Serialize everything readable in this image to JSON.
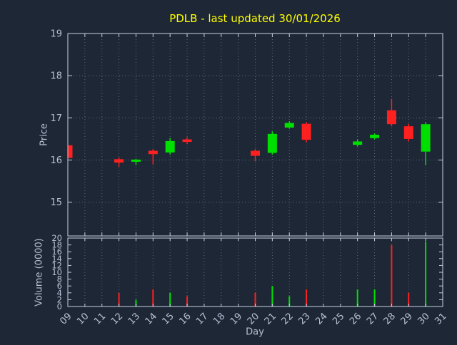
{
  "colors": {
    "background": "#1d2736",
    "up": "#00e000",
    "down": "#ff2020",
    "grid": "#5a6a80",
    "border": "#c6d0e2",
    "axis_text": "#b6c2d4",
    "title": "#ffff00"
  },
  "chart_data": {
    "type": "candlestick",
    "title": "PDLB - last updated 30/01/2026",
    "xlabel": "Day",
    "ylabel": "Price",
    "y2label": "Volume (0000)",
    "x_min": 9,
    "x_max": 31,
    "price_min": 14.2,
    "price_max": 19,
    "volume_min": 0,
    "volume_max": 20,
    "price_ticks": [
      15,
      16,
      17,
      18,
      19
    ],
    "volume_ticks": [
      0,
      2,
      4,
      6,
      8,
      10,
      12,
      14,
      16,
      18,
      20
    ],
    "day_labels": [
      "09",
      "10",
      "11",
      "12",
      "13",
      "14",
      "15",
      "16",
      "17",
      "18",
      "19",
      "20",
      "21",
      "22",
      "23",
      "24",
      "25",
      "26",
      "27",
      "28",
      "29",
      "30",
      "31"
    ],
    "grid": true,
    "legend": "none",
    "candles": [
      {
        "day": 9,
        "open": 16.35,
        "high": 16.35,
        "low": 16.05,
        "close": 16.05,
        "volume": 0
      },
      {
        "day": 12,
        "open": 16.02,
        "high": 16.06,
        "low": 15.84,
        "close": 15.94,
        "volume": 4
      },
      {
        "day": 13,
        "open": 15.96,
        "high": 16.03,
        "low": 15.89,
        "close": 16.01,
        "volume": 2
      },
      {
        "day": 14,
        "open": 16.22,
        "high": 16.26,
        "low": 15.9,
        "close": 16.14,
        "volume": 5
      },
      {
        "day": 15,
        "open": 16.18,
        "high": 16.52,
        "low": 16.13,
        "close": 16.45,
        "volume": 4
      },
      {
        "day": 16,
        "open": 16.49,
        "high": 16.54,
        "low": 16.38,
        "close": 16.43,
        "volume": 3
      },
      {
        "day": 20,
        "open": 16.22,
        "high": 16.26,
        "low": 15.97,
        "close": 16.1,
        "volume": 4
      },
      {
        "day": 21,
        "open": 16.17,
        "high": 16.68,
        "low": 16.13,
        "close": 16.62,
        "volume": 6
      },
      {
        "day": 22,
        "open": 16.77,
        "high": 16.92,
        "low": 16.74,
        "close": 16.88,
        "volume": 3
      },
      {
        "day": 23,
        "open": 16.86,
        "high": 16.9,
        "low": 16.42,
        "close": 16.48,
        "volume": 5
      },
      {
        "day": 26,
        "open": 16.36,
        "high": 16.49,
        "low": 16.32,
        "close": 16.44,
        "volume": 5
      },
      {
        "day": 27,
        "open": 16.52,
        "high": 16.63,
        "low": 16.49,
        "close": 16.6,
        "volume": 5
      },
      {
        "day": 28,
        "open": 17.18,
        "high": 17.45,
        "low": 16.8,
        "close": 16.85,
        "volume": 18
      },
      {
        "day": 29,
        "open": 16.8,
        "high": 16.86,
        "low": 16.44,
        "close": 16.5,
        "volume": 4
      },
      {
        "day": 30,
        "open": 16.2,
        "high": 16.9,
        "low": 15.88,
        "close": 16.85,
        "volume": 19
      }
    ]
  }
}
